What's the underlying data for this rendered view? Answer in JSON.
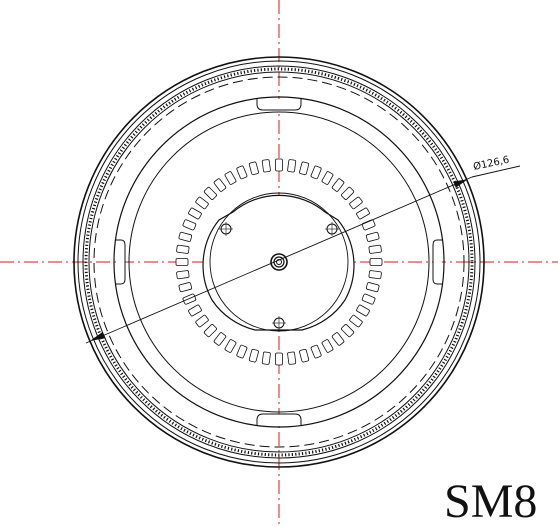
{
  "drawing": {
    "dimension_label": "Ø126,6",
    "model_label": "SM8",
    "colors": {
      "line": "#111111",
      "centerline": "#d81a1a",
      "background": "#ffffff"
    },
    "vent_slot_count": 48,
    "mounting_hole_count": 3
  }
}
